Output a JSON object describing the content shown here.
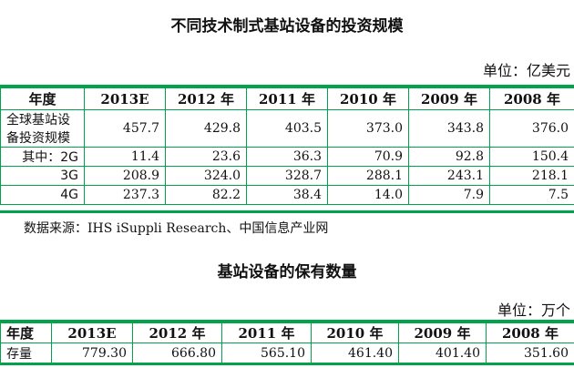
{
  "table1": {
    "title": "不同技术制式基站设备的投资规模",
    "unit": "单位：亿美元",
    "headers": [
      "年度",
      "2013E",
      "2012 年",
      "2011 年",
      "2010 年",
      "2009 年",
      "2008 年"
    ],
    "rows": [
      {
        "label": "全球基站设备投资规模",
        "values": [
          "457.7",
          "429.8",
          "403.5",
          "373.0",
          "343.8",
          "376.0"
        ]
      },
      {
        "label": "其中：2G",
        "values": [
          "11.4",
          "23.6",
          "36.3",
          "70.9",
          "92.8",
          "150.4"
        ]
      },
      {
        "label": "3G",
        "values": [
          "208.9",
          "324.0",
          "328.7",
          "288.1",
          "243.1",
          "218.1"
        ]
      },
      {
        "label": "4G",
        "values": [
          "237.3",
          "82.2",
          "38.4",
          "14.0",
          "7.9",
          "7.5"
        ]
      }
    ],
    "source": "数据来源：IHS iSuppli Research、中国信息产业网"
  },
  "table2": {
    "title": "基站设备的保有数量",
    "unit": "单位：万个",
    "headers": [
      "年度",
      "2013E",
      "2012 年",
      "2011 年",
      "2010 年",
      "2009 年",
      "2008 年"
    ],
    "rows": [
      {
        "label": "存量",
        "values": [
          "779.30",
          "666.80",
          "565.10",
          "461.40",
          "401.40",
          "351.60"
        ]
      }
    ]
  }
}
